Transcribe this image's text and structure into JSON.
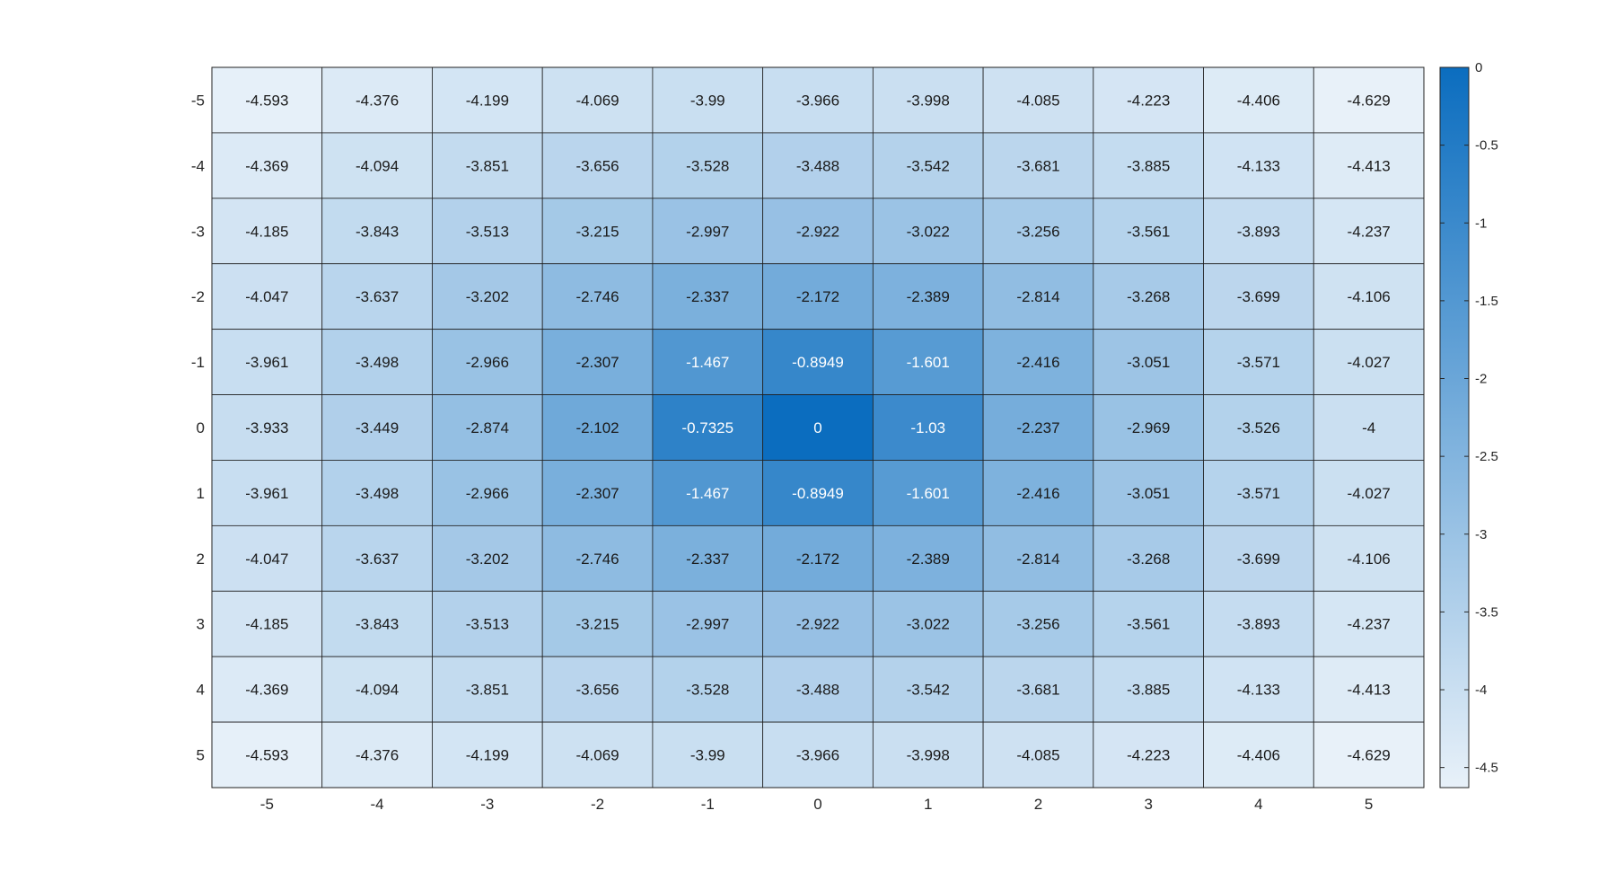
{
  "chart_data": {
    "type": "heatmap",
    "title": "",
    "xlabel": "",
    "ylabel": "",
    "x_categories": [
      "-5",
      "-4",
      "-3",
      "-2",
      "-1",
      "0",
      "1",
      "2",
      "3",
      "4",
      "5"
    ],
    "y_categories": [
      "-5",
      "-4",
      "-3",
      "-2",
      "-1",
      "0",
      "1",
      "2",
      "3",
      "4",
      "5"
    ],
    "values": [
      [
        -4.593,
        -4.376,
        -4.199,
        -4.069,
        -3.99,
        -3.966,
        -3.998,
        -4.085,
        -4.223,
        -4.406,
        -4.629
      ],
      [
        -4.369,
        -4.094,
        -3.851,
        -3.656,
        -3.528,
        -3.488,
        -3.542,
        -3.681,
        -3.885,
        -4.133,
        -4.413
      ],
      [
        -4.185,
        -3.843,
        -3.513,
        -3.215,
        -2.997,
        -2.922,
        -3.022,
        -3.256,
        -3.561,
        -3.893,
        -4.237
      ],
      [
        -4.047,
        -3.637,
        -3.202,
        -2.746,
        -2.337,
        -2.172,
        -2.389,
        -2.814,
        -3.268,
        -3.699,
        -4.106
      ],
      [
        -3.961,
        -3.498,
        -2.966,
        -2.307,
        -1.467,
        -0.8949,
        -1.601,
        -2.416,
        -3.051,
        -3.571,
        -4.027
      ],
      [
        -3.933,
        -3.449,
        -2.874,
        -2.102,
        -0.7325,
        0,
        -1.03,
        -2.237,
        -2.969,
        -3.526,
        -4
      ],
      [
        -3.961,
        -3.498,
        -2.966,
        -2.307,
        -1.467,
        -0.8949,
        -1.601,
        -2.416,
        -3.051,
        -3.571,
        -4.027
      ],
      [
        -4.047,
        -3.637,
        -3.202,
        -2.746,
        -2.337,
        -2.172,
        -2.389,
        -2.814,
        -3.268,
        -3.699,
        -4.106
      ],
      [
        -4.185,
        -3.843,
        -3.513,
        -3.215,
        -2.997,
        -2.922,
        -3.022,
        -3.256,
        -3.561,
        -3.893,
        -4.237
      ],
      [
        -4.369,
        -4.094,
        -3.851,
        -3.656,
        -3.528,
        -3.488,
        -3.542,
        -3.681,
        -3.885,
        -4.133,
        -4.413
      ],
      [
        -4.593,
        -4.376,
        -4.199,
        -4.069,
        -3.99,
        -3.966,
        -3.998,
        -4.085,
        -4.223,
        -4.406,
        -4.629
      ]
    ],
    "colorbar": {
      "range": [
        -4.629,
        0
      ],
      "ticks": [
        0,
        -0.5,
        -1,
        -1.5,
        -2,
        -2.5,
        -3,
        -3.5,
        -4,
        -4.5
      ],
      "tick_labels": [
        "0",
        "-0.5",
        "-1",
        "-1.5",
        "-2",
        "-2.5",
        "-3",
        "-3.5",
        "-4",
        "-4.5"
      ],
      "color_low": "#e8f1f9",
      "color_high": "#0b6dbf"
    },
    "grid": true,
    "text_color_dark": "#1a1a1a",
    "text_color_light": "#ffffff"
  }
}
